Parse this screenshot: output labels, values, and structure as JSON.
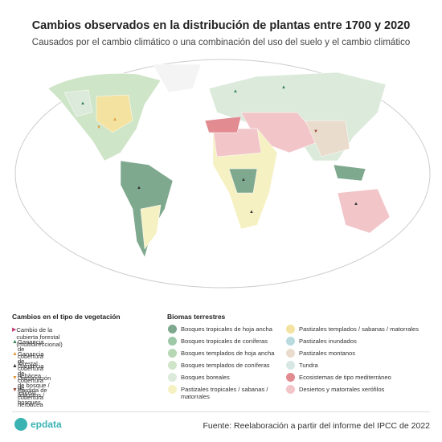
{
  "header": {
    "title": "Cambios observados en la distribución de plantas entre 1700 y 2020",
    "subtitle": "Causados por el cambio climático o una combinación del uso del suelo y el cambio climático"
  },
  "legend_vegetation": {
    "title": "Cambios en el tipo de vegetación",
    "items": [
      {
        "label": "Cambio de la cubierta forestal (multidireccional)",
        "symbol": "▶",
        "color": "#c2457a"
      },
      {
        "label": "Ganancia de cobertura forestal",
        "symbol": "▲",
        "color": "#2f7d57"
      },
      {
        "label": "Ganancia de cobertura hebácea",
        "symbol": "▲",
        "color": "#e39a3b"
      },
      {
        "label": "Ganancia de cobertura de arbustos / bosques",
        "symbol": "▲",
        "color": "#333333"
      },
      {
        "label": "Disminución de bosque / leñoso",
        "symbol": "▼",
        "color": "#e39a3b"
      },
      {
        "label": "Pérdida de cobertura herbácea",
        "symbol": "▼",
        "color": "#9b4a3a"
      }
    ]
  },
  "legend_biomes": {
    "title": "Biomas terrestres",
    "items": [
      {
        "label": "Bosques tropicales de hoja ancha",
        "color": "#7fa98f"
      },
      {
        "label": "Bosques tropicales de coníferas",
        "color": "#9ec9a8"
      },
      {
        "label": "Bosques templados de hoja ancha",
        "color": "#b6d7b4"
      },
      {
        "label": "Bosques templados de coníferas",
        "color": "#cfe5c7"
      },
      {
        "label": "Bosques boreales",
        "color": "#dbeadb"
      },
      {
        "label": "Pastizales tropicales / sabanas / matorrales",
        "color": "#f6f1c2"
      },
      {
        "label": "Pastizales templados / sabanas / matorrales",
        "color": "#f3e2a0"
      },
      {
        "label": "Pastizales inundados",
        "color": "#b9dbe0"
      },
      {
        "label": "Pastizales montanos",
        "color": "#e9dccd"
      },
      {
        "label": "Tundra",
        "color": "#d7e7e3"
      },
      {
        "label": "Ecosistemas de tipo mediterráneo",
        "color": "#e28b91"
      },
      {
        "label": "Desiertos y matorrales xerófilos",
        "color": "#f2c5c9"
      }
    ]
  },
  "footer": {
    "logo": "epdata",
    "source": "Fuente: Reelaboración a partir del informe del IPCC de 2022"
  }
}
